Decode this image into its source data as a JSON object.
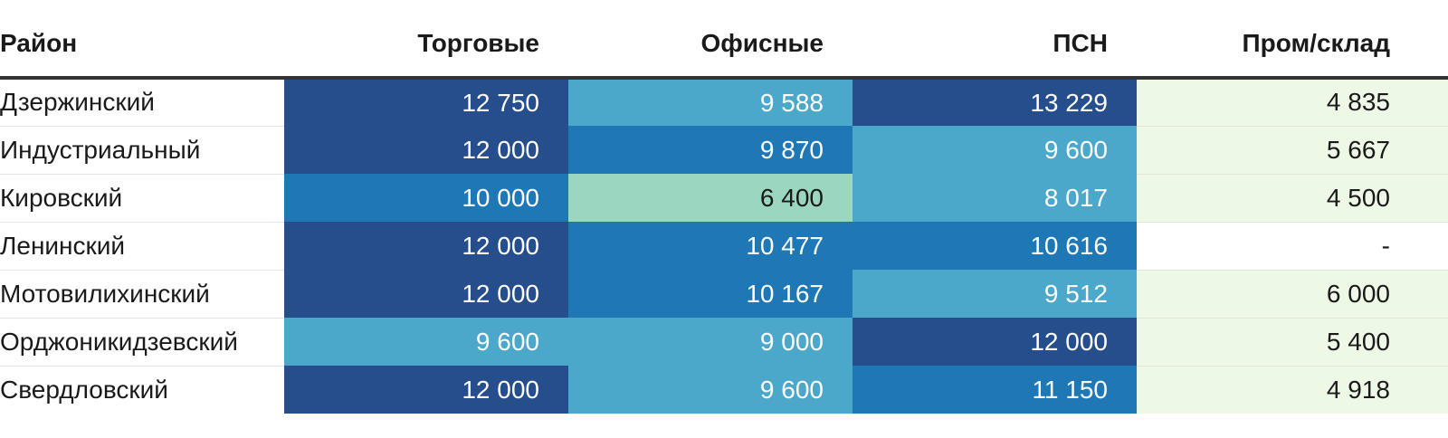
{
  "chart_data": {
    "type": "table",
    "columns": [
      "Район",
      "Торговые",
      "Офисные",
      "ПСН",
      "Пром/склад"
    ],
    "rows": [
      {
        "district": "Дзержинский",
        "cells": [
          {
            "text": "12 750",
            "value": 12750,
            "bg": "#264e8d",
            "fg": "#ffffff"
          },
          {
            "text": "9 588",
            "value": 9588,
            "bg": "#4ba8cb",
            "fg": "#ffffff"
          },
          {
            "text": "13 229",
            "value": 13229,
            "bg": "#264e8d",
            "fg": "#ffffff"
          },
          {
            "text": "4 835",
            "value": 4835,
            "bg": "#eef8e6",
            "fg": "#1a1a1a"
          }
        ]
      },
      {
        "district": "Индустриальный",
        "cells": [
          {
            "text": "12 000",
            "value": 12000,
            "bg": "#264e8d",
            "fg": "#ffffff"
          },
          {
            "text": "9 870",
            "value": 9870,
            "bg": "#1f78b6",
            "fg": "#ffffff"
          },
          {
            "text": "9 600",
            "value": 9600,
            "bg": "#4ba8cb",
            "fg": "#ffffff"
          },
          {
            "text": "5 667",
            "value": 5667,
            "bg": "#eef8e6",
            "fg": "#1a1a1a"
          }
        ]
      },
      {
        "district": "Кировский",
        "cells": [
          {
            "text": "10 000",
            "value": 10000,
            "bg": "#1f78b6",
            "fg": "#ffffff"
          },
          {
            "text": "6 400",
            "value": 6400,
            "bg": "#9ad6c0",
            "fg": "#1a1a1a"
          },
          {
            "text": "8 017",
            "value": 8017,
            "bg": "#4ba8cb",
            "fg": "#ffffff"
          },
          {
            "text": "4 500",
            "value": 4500,
            "bg": "#eef8e6",
            "fg": "#1a1a1a"
          }
        ]
      },
      {
        "district": "Ленинский",
        "cells": [
          {
            "text": "12 000",
            "value": 12000,
            "bg": "#264e8d",
            "fg": "#ffffff"
          },
          {
            "text": "10 477",
            "value": 10477,
            "bg": "#1f78b6",
            "fg": "#ffffff"
          },
          {
            "text": "10 616",
            "value": 10616,
            "bg": "#1f78b6",
            "fg": "#ffffff"
          },
          {
            "text": "-",
            "value": null,
            "bg": "#ffffff",
            "fg": "#1a1a1a"
          }
        ]
      },
      {
        "district": "Мотовилихинский",
        "cells": [
          {
            "text": "12 000",
            "value": 12000,
            "bg": "#264e8d",
            "fg": "#ffffff"
          },
          {
            "text": "10 167",
            "value": 10167,
            "bg": "#1f78b6",
            "fg": "#ffffff"
          },
          {
            "text": "9 512",
            "value": 9512,
            "bg": "#4ba8cb",
            "fg": "#ffffff"
          },
          {
            "text": "6 000",
            "value": 6000,
            "bg": "#eef8e6",
            "fg": "#1a1a1a"
          }
        ]
      },
      {
        "district": "Орджоникидзевский",
        "cells": [
          {
            "text": "9 600",
            "value": 9600,
            "bg": "#4ba8cb",
            "fg": "#ffffff"
          },
          {
            "text": "9 000",
            "value": 9000,
            "bg": "#4ba8cb",
            "fg": "#ffffff"
          },
          {
            "text": "12 000",
            "value": 12000,
            "bg": "#264e8d",
            "fg": "#ffffff"
          },
          {
            "text": "5 400",
            "value": 5400,
            "bg": "#eef8e6",
            "fg": "#1a1a1a"
          }
        ]
      },
      {
        "district": "Свердловский",
        "cells": [
          {
            "text": "12 000",
            "value": 12000,
            "bg": "#264e8d",
            "fg": "#ffffff"
          },
          {
            "text": "9 600",
            "value": 9600,
            "bg": "#4ba8cb",
            "fg": "#ffffff"
          },
          {
            "text": "11 150",
            "value": 11150,
            "bg": "#1f78b6",
            "fg": "#ffffff"
          },
          {
            "text": "4 918",
            "value": 4918,
            "bg": "#eef8e6",
            "fg": "#1a1a1a"
          }
        ]
      }
    ]
  }
}
